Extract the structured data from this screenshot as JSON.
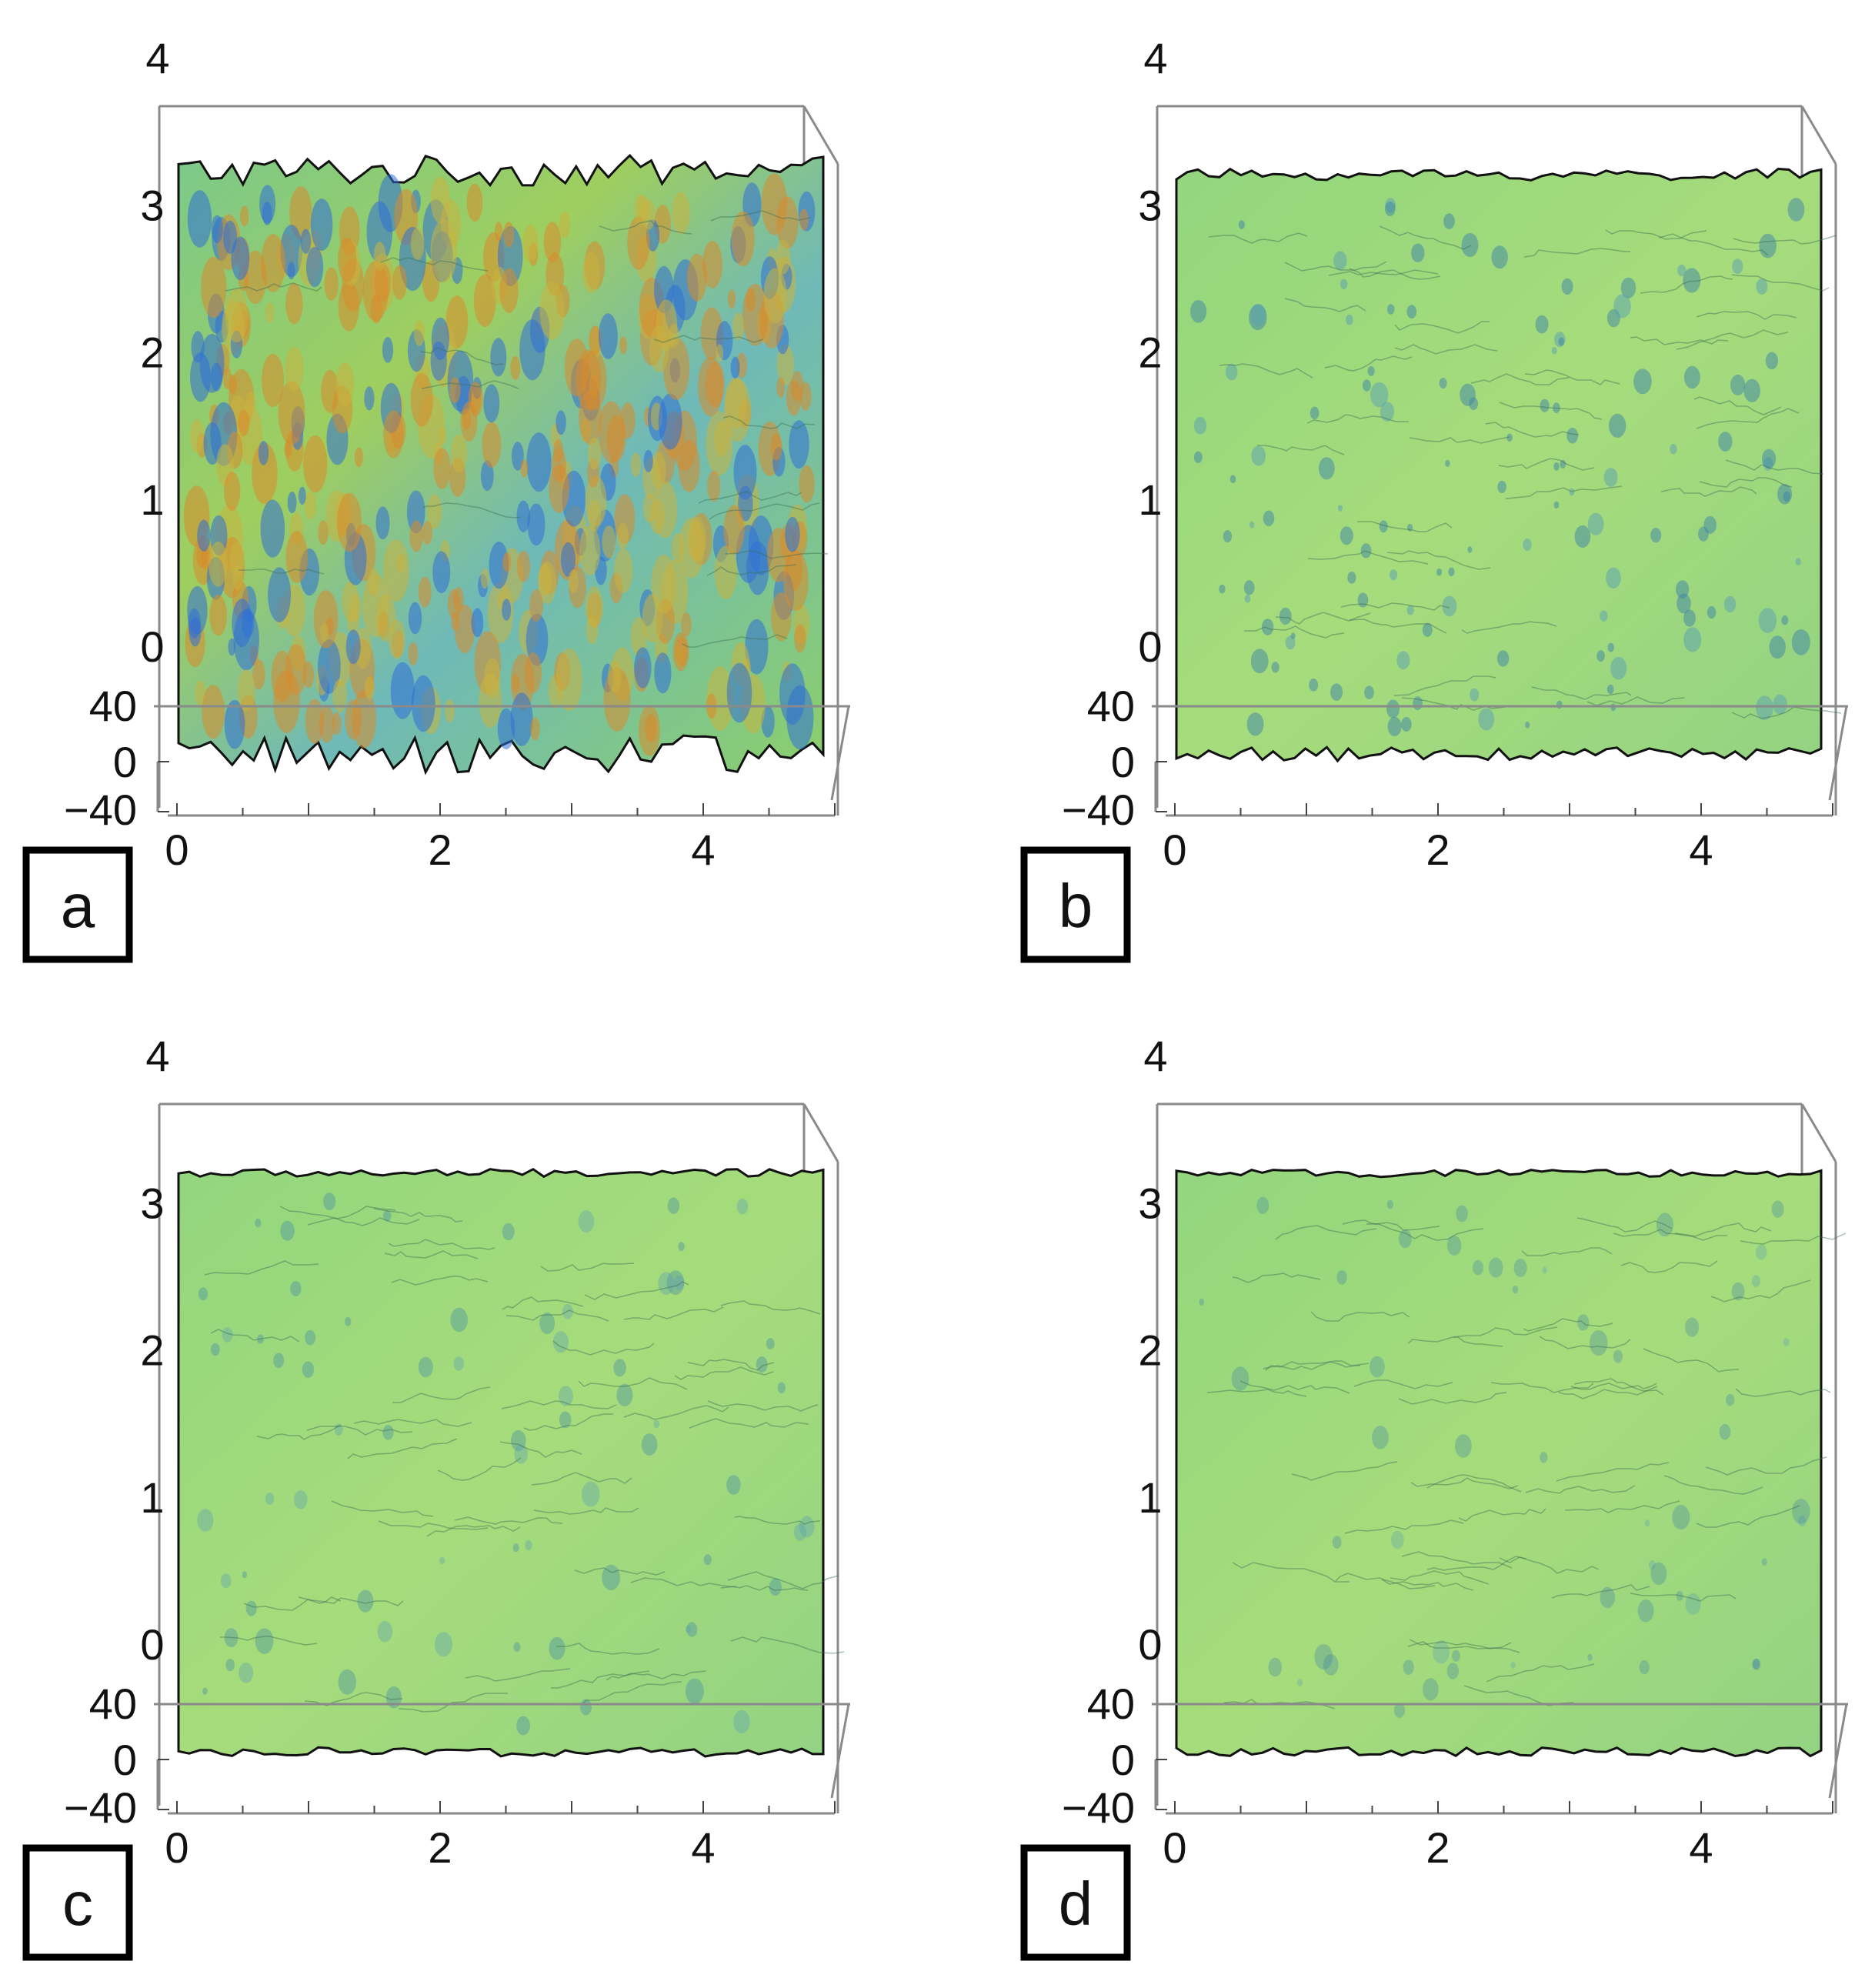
{
  "figure": {
    "colors": {
      "frame": "#8a8a8a",
      "surface_outline": "#111111",
      "label_box": "#000000",
      "low": "#2f6fd6",
      "mid": "#8fd27a",
      "high": "#d98a2b"
    }
  },
  "chart_data": [
    {
      "type": "surface",
      "panel_label": "a",
      "roughness": 1.0,
      "x_ticks": [
        "0",
        "2",
        "4"
      ],
      "y_ticks": [
        "0",
        "1",
        "2",
        "3",
        "4"
      ],
      "z_ticks": [
        "40",
        "0",
        "−40"
      ],
      "xlim": [
        0,
        5
      ],
      "ylim": [
        0,
        4
      ],
      "zlim": [
        -40,
        40
      ],
      "grid": false,
      "legend": "none"
    },
    {
      "type": "surface",
      "panel_label": "b",
      "roughness": 0.22,
      "x_ticks": [
        "0",
        "2",
        "4"
      ],
      "y_ticks": [
        "0",
        "1",
        "2",
        "3",
        "4"
      ],
      "z_ticks": [
        "40",
        "0",
        "−40"
      ],
      "xlim": [
        0,
        5
      ],
      "ylim": [
        0,
        4
      ],
      "zlim": [
        -40,
        40
      ],
      "grid": false,
      "legend": "none"
    },
    {
      "type": "surface",
      "panel_label": "c",
      "roughness": 0.08,
      "x_ticks": [
        "0",
        "2",
        "4"
      ],
      "y_ticks": [
        "0",
        "1",
        "2",
        "3",
        "4"
      ],
      "z_ticks": [
        "40",
        "0",
        "−40"
      ],
      "xlim": [
        0,
        5
      ],
      "ylim": [
        0,
        4
      ],
      "zlim": [
        -40,
        40
      ],
      "grid": false,
      "legend": "none"
    },
    {
      "type": "surface",
      "panel_label": "d",
      "roughness": 0.04,
      "x_ticks": [
        "0",
        "2",
        "4"
      ],
      "y_ticks": [
        "0",
        "1",
        "2",
        "3",
        "4"
      ],
      "z_ticks": [
        "40",
        "0",
        "−40"
      ],
      "xlim": [
        0,
        5
      ],
      "ylim": [
        0,
        4
      ],
      "zlim": [
        -40,
        40
      ],
      "grid": false,
      "legend": "none"
    }
  ]
}
